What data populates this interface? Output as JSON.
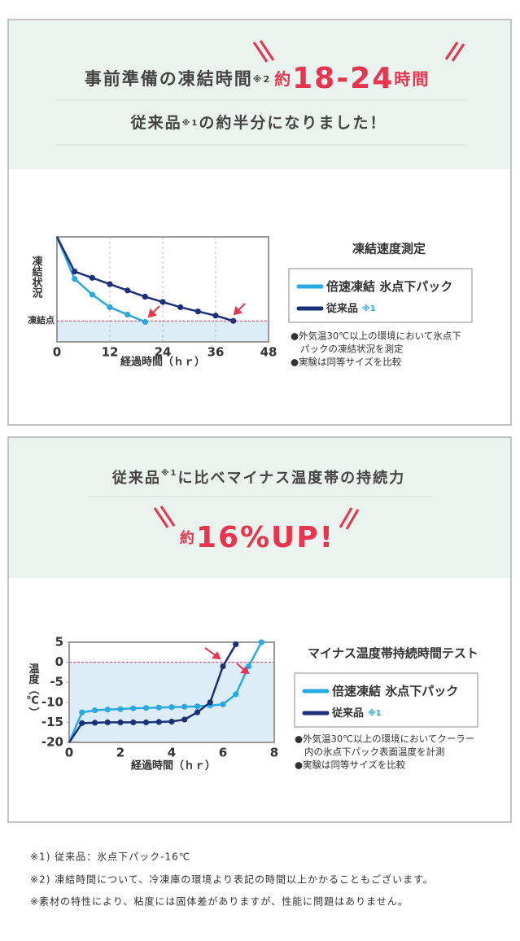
{
  "section1": {
    "headline": [
      "事前準備の凍結時間",
      "※2",
      "約",
      "18-24",
      "時間"
    ],
    "subline": [
      "従来品",
      "※1",
      "の約半分になりました！"
    ]
  },
  "section2": {
    "headline": [
      "従来品",
      "※1",
      "に比べマイナス温度帯の持続力"
    ],
    "emphasis": [
      "約",
      "16%UP!"
    ]
  },
  "chart_data": [
    {
      "type": "line",
      "title": "凍結速度測定",
      "x_label": "経過時間（ｈｒ）",
      "y_label": "凍結状況",
      "xlim": [
        0,
        48
      ],
      "xticks": [
        0,
        12,
        24,
        36,
        48
      ],
      "ylim": [
        0,
        100
      ],
      "grid": true,
      "reference_line": {
        "value": 20,
        "label": "凍結点"
      },
      "series": [
        {
          "name": "倍速凍結 氷点下パック",
          "color": "#29a9e0",
          "x": [
            0,
            4,
            8,
            12,
            16,
            20
          ],
          "values": [
            100,
            60,
            45,
            33,
            26,
            19
          ]
        },
        {
          "name": "従来品",
          "note": "※1",
          "color": "#1b2f7b",
          "x": [
            0,
            4,
            8,
            12,
            16,
            20,
            24,
            28,
            32,
            36,
            40
          ],
          "values": [
            100,
            67,
            61,
            55,
            49,
            43,
            38,
            33,
            29,
            25,
            20
          ]
        }
      ],
      "notes": [
        "●外気温30℃以上の環境において氷点下",
        "パックの凍結状況を測定",
        "●実験は同等サイズを比較"
      ]
    },
    {
      "type": "line",
      "title": "マイナス温度帯持続時間テスト",
      "x_label": "経過時間（ｈｒ）",
      "y_label": "温度（℃）",
      "xlim": [
        0,
        8
      ],
      "xticks": [
        0,
        2,
        4,
        6,
        8
      ],
      "ylim": [
        -20,
        5
      ],
      "yticks": [
        5,
        0,
        -5,
        -10,
        -15,
        -20
      ],
      "grid": false,
      "reference_line": 0,
      "series": [
        {
          "name": "倍速凍結 氷点下パック",
          "color": "#29a9e0",
          "x": [
            0,
            0.5,
            1,
            1.5,
            2,
            2.5,
            3,
            3.5,
            4,
            4.5,
            5,
            5.5,
            6,
            6.5,
            7,
            7.5
          ],
          "values": [
            -20,
            -12.5,
            -12,
            -11.8,
            -11.7,
            -11.5,
            -11.4,
            -11.3,
            -11.2,
            -11.1,
            -11,
            -10.8,
            -10.5,
            -8,
            -1,
            5
          ]
        },
        {
          "name": "従来品",
          "note": "※1",
          "color": "#1b2f7b",
          "x": [
            0,
            0.5,
            1,
            1.5,
            2,
            2.5,
            3,
            3.5,
            4,
            4.5,
            5,
            5.5,
            6,
            6.5
          ],
          "values": [
            -20,
            -15.2,
            -15.1,
            -15,
            -15,
            -15,
            -15,
            -14.9,
            -14.8,
            -14.3,
            -12.5,
            -10,
            -1,
            4.5
          ]
        }
      ],
      "notes": [
        "●外気温30℃以上の環境においてクーラー",
        "内の氷点下パック表面温度を計測",
        "●実験は同等サイズを比較"
      ]
    }
  ],
  "footnotes": [
    "※1) 従来品：氷点下パック-16℃",
    "※2) 凍結時間について、冷凍庫の環境より表記の時間以上かかることもございます。",
    "※素材の特性により、粘度には固体差がありますが、性能に問題はありません。"
  ]
}
